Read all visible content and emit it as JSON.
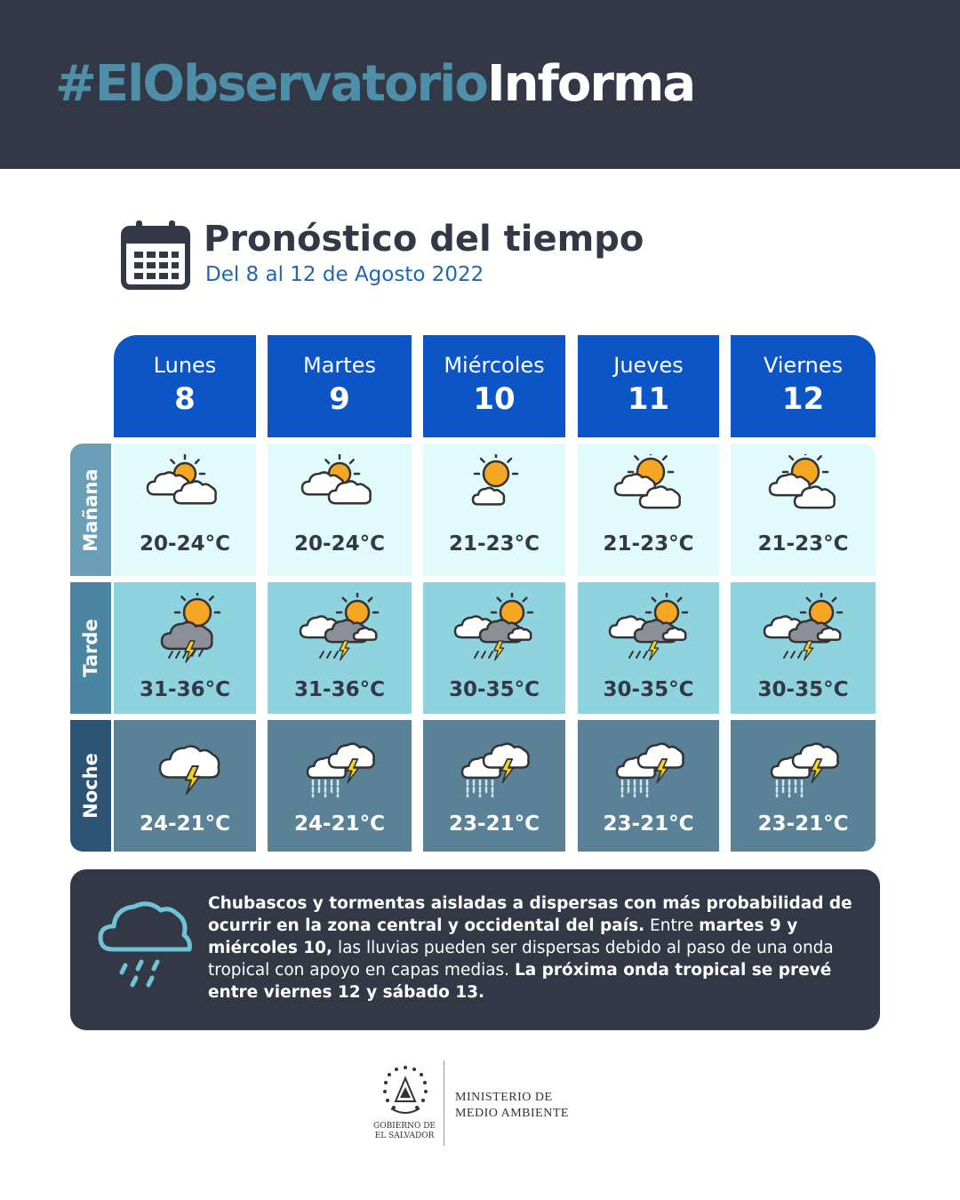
{
  "header": {
    "hashtag_part1": "#ElObservatorio",
    "hashtag_part2": "Informa"
  },
  "title": "Pronóstico del tiempo",
  "subtitle": "Del 8 al 12 de Agosto 2022",
  "days": [
    {
      "name": "Lunes",
      "num": "8"
    },
    {
      "name": "Martes",
      "num": "9"
    },
    {
      "name": "Miércoles",
      "num": "10"
    },
    {
      "name": "Jueves",
      "num": "11"
    },
    {
      "name": "Viernes",
      "num": "12"
    }
  ],
  "rows": [
    {
      "label": "Mañana",
      "icons": [
        "partly-cloudy-sun-icon",
        "partly-cloudy-sun-icon",
        "sun-small-cloud-icon",
        "sun-behind-clouds-icon",
        "sun-behind-clouds-icon"
      ],
      "temps": [
        "20-24°C",
        "20-24°C",
        "21-23°C",
        "21-23°C",
        "21-23°C"
      ]
    },
    {
      "label": "Tarde",
      "icons": [
        "sun-thunderstorm-icon",
        "sun-clouds-thunderstorm-icon",
        "sun-clouds-thunderstorm-icon",
        "sun-clouds-thunderstorm-icon",
        "sun-clouds-thunderstorm-icon"
      ],
      "temps": [
        "31-36°C",
        "31-36°C",
        "30-35°C",
        "30-35°C",
        "30-35°C"
      ]
    },
    {
      "label": "Noche",
      "icons": [
        "cloud-lightning-icon",
        "cloud-rain-lightning-icon",
        "cloud-rain-lightning-icon",
        "cloud-rain-lightning-icon",
        "cloud-rain-lightning-icon"
      ],
      "temps": [
        "24-21°C",
        "24-21°C",
        "23-21°C",
        "23-21°C",
        "23-21°C"
      ]
    }
  ],
  "notice": {
    "icon": "rain-cloud-icon",
    "p1_bold": "Chubascos y tormentas  aisladas a dispersas con más probabilidad de ocurrir en la zona central y occidental del país.",
    "p2": " Entre ",
    "p3_bold": "martes 9 y miércoles 10,",
    "p4": " las lluvias pueden ser dispersas debido al paso de una onda tropical con apoyo en capas medias. ",
    "p5_bold": "La próxima onda tropical se prevé entre  viernes 12 y sábado 13."
  },
  "footer": {
    "gov_line1": "GOBIERNO DE",
    "gov_line2": "EL SALVADOR",
    "ministry_line1": "MINISTERIO DE",
    "ministry_line2": "MEDIO AMBIENTE"
  },
  "colors": {
    "banner": "#323845",
    "day_header": "#0c55c6",
    "morning_bg": "#e1fbfd",
    "afternoon_bg": "#8fd3df",
    "night_bg": "#5b8197",
    "label_morning": "#6a9fb7",
    "label_afternoon": "#4a86a1",
    "label_night": "#2d5472"
  }
}
